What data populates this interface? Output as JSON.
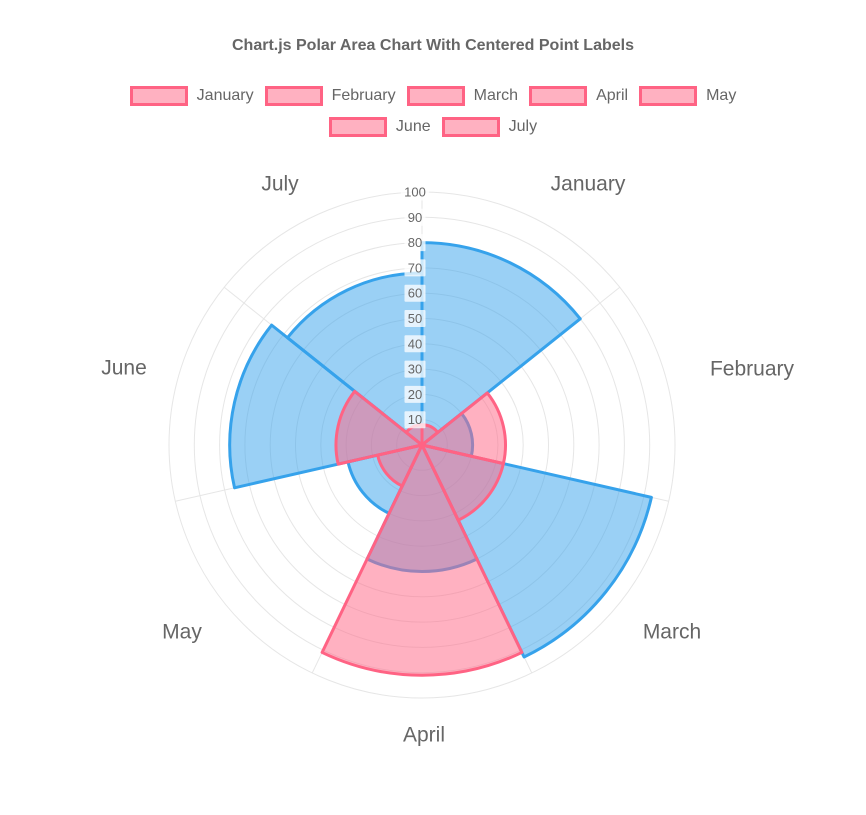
{
  "title": "Chart.js Polar Area Chart With Centered Point Labels",
  "legend": {
    "rows": [
      [
        "January",
        "February",
        "March",
        "April",
        "May"
      ],
      [
        "June",
        "July"
      ]
    ]
  },
  "chart_data": {
    "type": "polarArea",
    "labels": [
      "January",
      "February",
      "March",
      "April",
      "May",
      "June",
      "July"
    ],
    "datasets": [
      {
        "id": "pink",
        "border_color": "#FF6384",
        "fill_color": "rgba(255, 99, 132, 0.5)",
        "values": [
          8,
          33,
          33,
          91,
          18,
          34,
          8
        ],
        "draw_order": "top"
      },
      {
        "id": "blue",
        "border_color": "#36A2EB",
        "fill_color": "rgba(54, 162, 235, 0.5)",
        "values": [
          80,
          20,
          93,
          50,
          30,
          76,
          68
        ],
        "draw_order": "bottom"
      }
    ],
    "scale": {
      "min": 0,
      "max": 100,
      "step": 10,
      "ticks": [
        10,
        20,
        30,
        40,
        50,
        60,
        70,
        80,
        90,
        100
      ]
    },
    "start_angle_deg": 0,
    "direction": "clockwise",
    "legend_position": "top",
    "grid": true
  },
  "colors": {
    "text": "#666666",
    "grid": "#e6e6e6",
    "tick_backdrop": "rgba(255,255,255,0.75)",
    "background": "#ffffff"
  }
}
